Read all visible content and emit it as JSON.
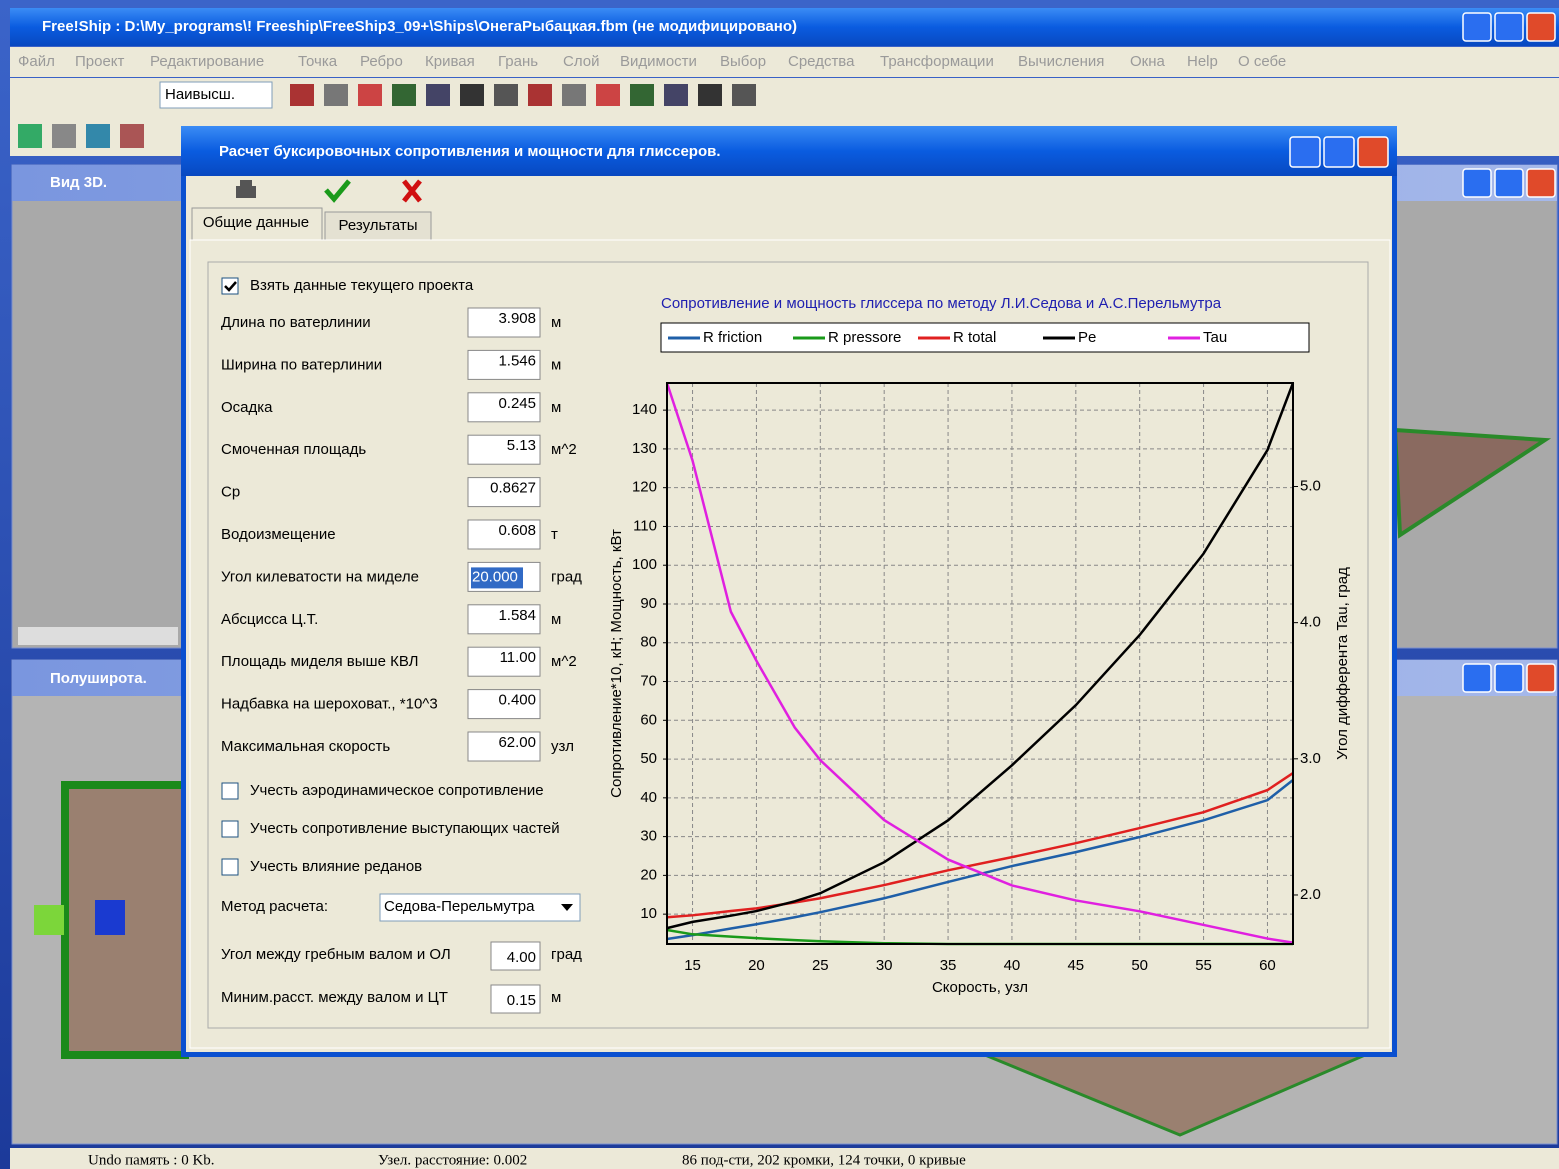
{
  "window": {
    "title": "Free!Ship  : D:\\My_programs\\! Freeship\\FreeShip3_09+\\Ships\\ОнегаРыбацкая.fbm (не модифицировано)"
  },
  "menu": [
    "Файл",
    "Проект",
    "Редактирование",
    "Точка",
    "Ребро",
    "Кривая",
    "Грань",
    "Слой",
    "Видимости",
    "Выбор",
    "Средства",
    "Трансформации",
    "Вычисления",
    "Окна",
    "Help",
    "О себе"
  ],
  "toolbar": {
    "combo": "Наивысш."
  },
  "views": [
    "Вид 3D.",
    "Полуширота."
  ],
  "statusbar": [
    "Undo память : 0 Kb.",
    "Узел. расстояние: 0.002",
    "86 под-сти, 202 кромки, 124 точки, 0 кривые"
  ],
  "dialog": {
    "title": "Расчет буксировочных сопротивления и мощности для глиссеров.",
    "tabs": [
      "Общие данные",
      "Результаты"
    ],
    "use_project": {
      "label": "Взять данные текущего проекта",
      "checked": true
    },
    "fields": [
      {
        "label": "Длина по ватерлинии",
        "value": "3.908",
        "unit": "м"
      },
      {
        "label": "Ширина по ватерлинии",
        "value": "1.546",
        "unit": "м"
      },
      {
        "label": "Осадка",
        "value": "0.245",
        "unit": "м"
      },
      {
        "label": "Смоченная площадь",
        "value": "5.13",
        "unit": "м^2"
      },
      {
        "label": "Cp",
        "value": "0.8627"
      },
      {
        "label": "Водоизмещение",
        "value": "0.608",
        "unit": "т"
      },
      {
        "label": "Угол килеватости на миделе",
        "value": "20.000",
        "unit": "град",
        "selected": true
      },
      {
        "label": "Абсцисса Ц.Т.",
        "value": "1.584",
        "unit": "м"
      },
      {
        "label": "Площадь миделя выше КВЛ",
        "value": "11.00",
        "unit": "м^2"
      },
      {
        "label": "Надбавка на шероховат., *10^3",
        "value": "0.400"
      },
      {
        "label": "Максимальная скорость",
        "value": "62.00",
        "unit": "узл"
      }
    ],
    "options": [
      {
        "label": "Учесть аэродинамическое сопротивление",
        "checked": false
      },
      {
        "label": "Учесть сопротивление выступающих частей",
        "checked": false
      },
      {
        "label": "Учесть влияние реданов",
        "checked": false
      }
    ],
    "method": {
      "label": "Метод расчета:",
      "value": "Седова-Перельмутра"
    },
    "shaft_fields": [
      {
        "label": "Угол между гребным валом и ОЛ",
        "value": "4.00",
        "unit": "град"
      },
      {
        "label": "Миним.расст. между валом и ЦТ",
        "value": "0.15",
        "unit": "м"
      }
    ]
  },
  "chart_data": {
    "type": "line",
    "title": "Сопротивление и мощность глиссера по методу Л.И.Седова и А.С.Перельмутра",
    "x_label": "Скорость, узл",
    "y_label": "Сопротивление*10, кН; Мощность, кВт",
    "y2_label": "Угол дифферента Tau, град",
    "x": [
      13,
      15,
      18,
      20,
      23,
      25,
      30,
      35,
      40,
      45,
      50,
      55,
      60,
      62
    ],
    "series": [
      {
        "name": "R friction",
        "color": "#1f5fa8",
        "values": [
          3.6,
          4.6,
          6.3,
          7.4,
          9.2,
          10.5,
          14.1,
          18.3,
          22.4,
          26,
          29.9,
          34.2,
          39.4,
          44.6
        ]
      },
      {
        "name": "R pressore",
        "color": "#1a9a1a",
        "values": [
          5.9,
          4.8,
          4.2,
          3.8,
          3.3,
          3,
          2.5,
          2.3,
          2.3,
          2.3,
          2.3,
          2.3,
          2.3,
          2.3
        ]
      },
      {
        "name": "R total",
        "color": "#e02020",
        "values": [
          9.2,
          9.7,
          10.8,
          11.5,
          13,
          14.1,
          17.5,
          21.3,
          24.7,
          28.3,
          32.2,
          36.3,
          42,
          46.4
        ]
      },
      {
        "name": "Pe",
        "color": "#000000",
        "values": [
          6.4,
          8,
          9.6,
          10.8,
          13.3,
          15.4,
          23.4,
          34.2,
          48.4,
          63.9,
          82,
          103,
          129.7,
          147
        ]
      },
      {
        "name": "Tau",
        "color": "#e020e0",
        "axis": "y2",
        "values": [
          5.76,
          5.19,
          4.08,
          3.72,
          3.23,
          2.99,
          2.55,
          2.26,
          2.07,
          1.96,
          1.88,
          1.78,
          1.68,
          1.65
        ]
      }
    ],
    "xlim": [
      13,
      62
    ],
    "xticks": [
      15,
      20,
      25,
      30,
      35,
      40,
      45,
      50,
      55,
      60
    ],
    "ylim": [
      2.3,
      147
    ],
    "yticks": [
      10,
      20,
      30,
      40,
      50,
      60,
      70,
      80,
      90,
      100,
      110,
      120,
      130,
      140
    ],
    "y2lim": [
      1.64,
      5.76
    ],
    "y2ticks": [
      {
        "value": 2,
        "label": "2.0"
      },
      {
        "value": 3,
        "label": "3.0"
      },
      {
        "value": 4,
        "label": "4.0"
      },
      {
        "value": 5,
        "label": "5.0"
      }
    ],
    "grid": true
  }
}
